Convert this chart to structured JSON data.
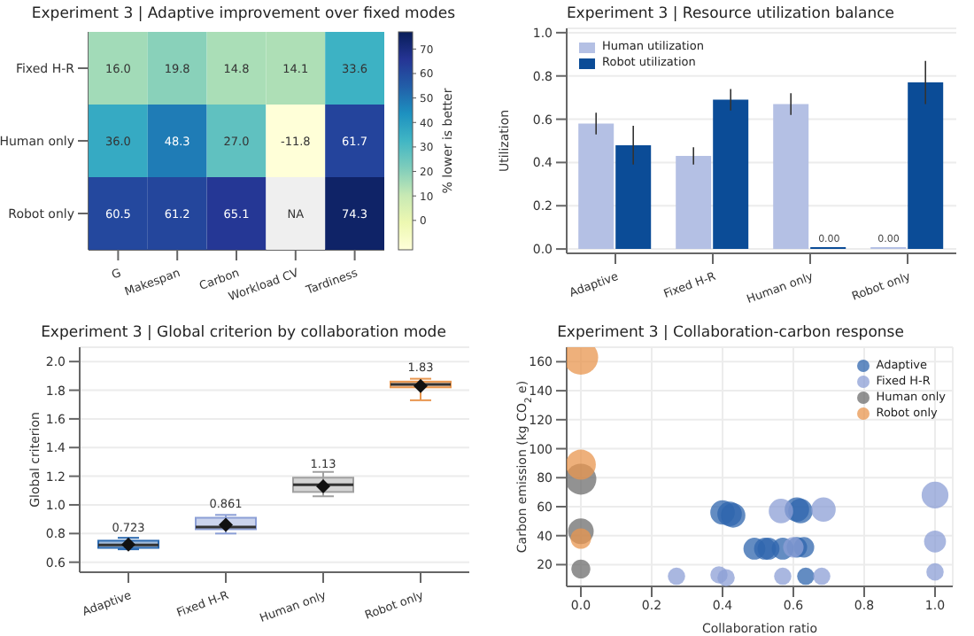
{
  "chart_data": [
    {
      "type": "heatmap",
      "title": "Experiment 3 | Adaptive improvement over fixed modes",
      "categories": [
        "G",
        "Makespan",
        "Carbon",
        "Workload CV",
        "Tardiness"
      ],
      "y_categories": [
        "Fixed H-R",
        "Human only",
        "Robot only"
      ],
      "cells": [
        [
          16.0,
          19.8,
          14.8,
          14.1,
          33.6
        ],
        [
          36.0,
          48.3,
          27.0,
          -11.8,
          61.7
        ],
        [
          60.5,
          61.2,
          65.1,
          null,
          74.3
        ]
      ],
      "cell_labels": [
        [
          "16.0",
          "19.8",
          "14.8",
          "14.1",
          "33.6"
        ],
        [
          "36.0",
          "48.3",
          "27.0",
          "-11.8",
          "61.7"
        ],
        [
          "60.5",
          "61.2",
          "65.1",
          "NA",
          "74.3"
        ]
      ],
      "clabel": "% lower is better",
      "clim": [
        -12,
        77
      ],
      "cticks": [
        0,
        10,
        20,
        30,
        40,
        50,
        60,
        70
      ]
    },
    {
      "type": "bar",
      "title": "Experiment 3 | Resource utilization balance",
      "ylabel": "Utilization",
      "categories": [
        "Adaptive",
        "Fixed H-R",
        "Human only",
        "Robot only"
      ],
      "series": [
        {
          "name": "Human utilization",
          "color": "#b4c0e4",
          "values": [
            0.58,
            0.43,
            0.67,
            0.0
          ],
          "errors": [
            0.05,
            0.04,
            0.05,
            null
          ],
          "value_labels": [
            null,
            null,
            null,
            "0.00"
          ]
        },
        {
          "name": "Robot utilization",
          "color": "#0b4c97",
          "values": [
            0.48,
            0.69,
            0.0,
            0.77
          ],
          "errors": [
            0.09,
            0.05,
            null,
            0.1
          ],
          "value_labels": [
            null,
            null,
            "0.00",
            null
          ]
        }
      ],
      "ylim": [
        -0.02,
        1.02
      ],
      "yticks": [
        {
          "value": 0,
          "label": "0.0"
        },
        0.2,
        0.4,
        0.6,
        0.8,
        {
          "value": 1,
          "label": "1.0"
        }
      ],
      "legend": "top left",
      "grid": "y"
    },
    {
      "type": "box",
      "title": "Experiment 3 | Global criterion by collaboration mode",
      "ylabel": "Global criterion",
      "categories": [
        "Adaptive",
        "Fixed H-R",
        "Human only",
        "Robot only"
      ],
      "colors": [
        "#2c6ab0",
        "#8c9fd6",
        "#a0a0a0",
        "#e8964f"
      ],
      "boxes": [
        {
          "low": 0.69,
          "q1": 0.7,
          "median": 0.72,
          "q3": 0.75,
          "high": 0.77,
          "mean": 0.723
        },
        {
          "low": 0.8,
          "q1": 0.83,
          "median": 0.845,
          "q3": 0.91,
          "high": 0.93,
          "mean": 0.861
        },
        {
          "low": 1.06,
          "q1": 1.09,
          "median": 1.14,
          "q3": 1.19,
          "high": 1.23,
          "mean": 1.13
        },
        {
          "low": 1.73,
          "q1": 1.82,
          "median": 1.84,
          "q3": 1.86,
          "high": 1.88,
          "mean": 1.83
        }
      ],
      "annotations": [
        {
          "text": "0.723",
          "x": "Adaptive",
          "y": 0.75
        },
        {
          "text": "0.861",
          "x": "Fixed H-R",
          "y": 0.92
        },
        {
          "text": "1.13",
          "x": "Human only",
          "y": 1.2
        },
        {
          "text": "1.83",
          "x": "Robot only",
          "y": 1.87
        }
      ],
      "ylim": [
        0.53,
        2.1
      ],
      "yticks": [
        0.6,
        0.8,
        {
          "value": 1,
          "label": "1.0"
        },
        1.2,
        1.4,
        1.6,
        1.8,
        {
          "value": 2,
          "label": "2.0"
        }
      ],
      "grid": "y"
    },
    {
      "type": "bubble",
      "title": "Experiment 3 | Collaboration-carbon response",
      "xlabel": "Collaboration ratio",
      "ylabel": "Carbon emission (kg CO$_{2}$e)",
      "series": [
        {
          "name": "Adaptive",
          "color": "#2f65ad",
          "x": [
            0.4,
            0.42,
            0.43,
            0.49,
            0.52,
            0.53,
            0.57,
            0.61,
            0.62,
            0.635,
            0.61,
            0.63
          ],
          "values": [
            56,
            55,
            54,
            31,
            31,
            31,
            31,
            58,
            57,
            12,
            32,
            32
          ],
          "sizes": [
            0.5,
            0.5,
            0.5,
            0.4,
            0.4,
            0.4,
            0.4,
            0.5,
            0.5,
            0.25,
            0.35,
            0.35
          ]
        },
        {
          "name": "Fixed H-R",
          "color": "#8c9fd6",
          "x": [
            0.27,
            0.39,
            0.41,
            0.57,
            0.68,
            1.0,
            1.0,
            1.0,
            0.565,
            0.685,
            0.6
          ],
          "values": [
            12,
            13,
            11,
            12,
            12,
            68,
            36,
            15,
            57,
            58,
            32
          ],
          "sizes": [
            0.25,
            0.25,
            0.25,
            0.25,
            0.25,
            0.6,
            0.4,
            0.25,
            0.5,
            0.5,
            0.35
          ]
        },
        {
          "name": "Human only",
          "color": "#6e6e6e",
          "x": [
            0,
            0,
            0
          ],
          "values": [
            79,
            43,
            17
          ],
          "sizes": [
            0.8,
            0.55,
            0.3
          ]
        },
        {
          "name": "Robot only",
          "color": "#e8964f",
          "x": [
            0,
            0,
            0
          ],
          "values": [
            163,
            89,
            38
          ],
          "sizes": [
            1.0,
            0.75,
            0.35
          ]
        }
      ],
      "xlim": [
        -0.04,
        1.05
      ],
      "xticks": [
        {
          "value": 0,
          "label": "0.0"
        },
        0.2,
        0.4,
        0.6,
        0.8,
        {
          "value": 1,
          "label": "1.0"
        }
      ],
      "ylim": [
        5,
        170
      ],
      "yticks": [
        20,
        40,
        60,
        80,
        100,
        120,
        140,
        160
      ],
      "legend": "top right",
      "grid": true
    }
  ]
}
